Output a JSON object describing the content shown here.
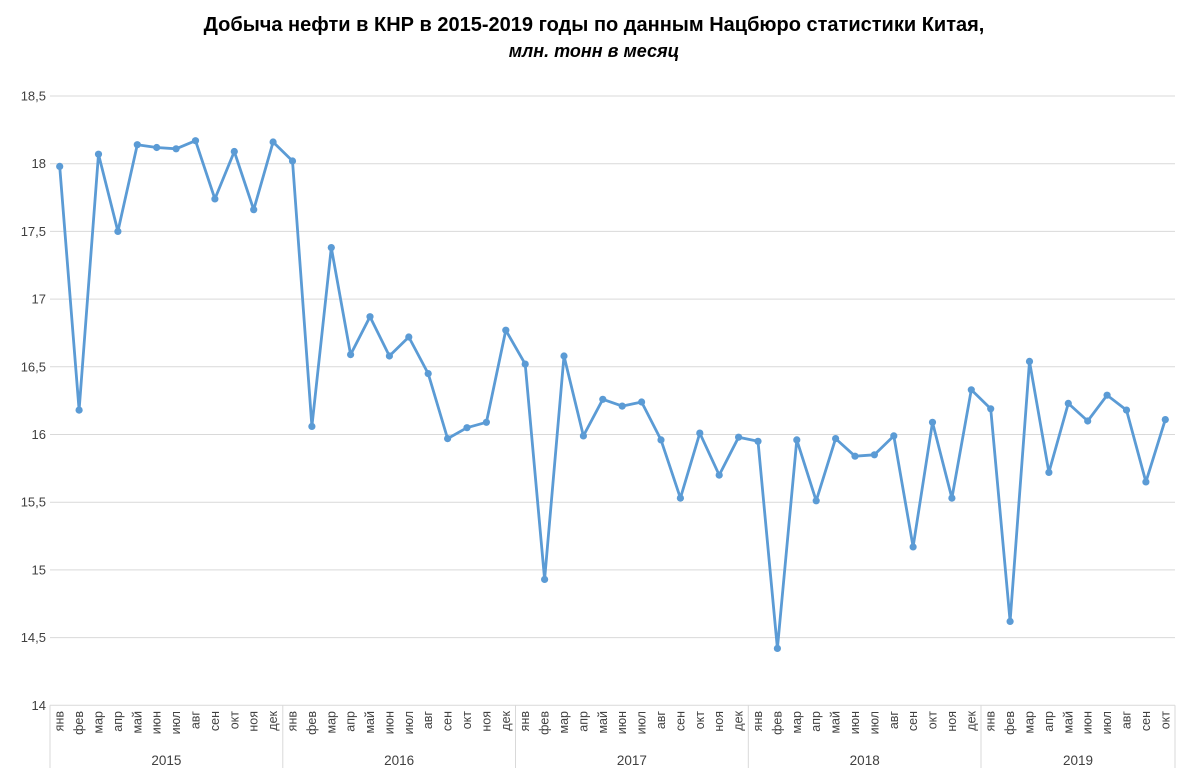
{
  "header": {
    "title": "Добыча нефти в КНР в 2015-2019 годы по данным Нацбюро статистики Китая,",
    "subtitle": "млн. тонн в месяц"
  },
  "chart_data": {
    "type": "line",
    "title": "Добыча нефти в КНР в 2015-2019 годы по данным Нацбюро статистики Китая,",
    "subtitle": "млн. тонн в месяц",
    "xlabel": "",
    "ylabel": "",
    "ylim": [
      14,
      18.5
    ],
    "ytick_step": 0.5,
    "ytick_labels": [
      "18,5",
      "18",
      "17,5",
      "17",
      "16,5",
      "16",
      "15,5",
      "15",
      "14,5",
      "14"
    ],
    "decimal_separator": ",",
    "grid": true,
    "legend_position": "none",
    "colors": {
      "line": "#5B9BD5",
      "marker": "#5B9BD5",
      "gridline": "#d9d9d9",
      "axis_text": "#404040",
      "title_text": "#000000"
    },
    "groups": [
      {
        "year": "2015",
        "months": [
          "янв",
          "фев",
          "мар",
          "апр",
          "май",
          "июн",
          "июл",
          "авг",
          "сен",
          "окт",
          "ноя",
          "дек"
        ],
        "values": [
          17.98,
          16.18,
          18.07,
          17.5,
          18.14,
          18.12,
          18.11,
          18.17,
          17.74,
          18.09,
          17.66,
          18.16
        ]
      },
      {
        "year": "2016",
        "months": [
          "янв",
          "фев",
          "мар",
          "апр",
          "май",
          "июн",
          "июл",
          "авг",
          "сен",
          "окт",
          "ноя",
          "дек"
        ],
        "values": [
          18.02,
          16.06,
          17.38,
          16.59,
          16.87,
          16.58,
          16.72,
          16.45,
          15.97,
          16.05,
          16.09,
          16.77
        ]
      },
      {
        "year": "2017",
        "months": [
          "янв",
          "фев",
          "мар",
          "апр",
          "май",
          "июн",
          "июл",
          "авг",
          "сен",
          "окт",
          "ноя",
          "дек"
        ],
        "values": [
          16.52,
          14.93,
          16.58,
          15.99,
          16.26,
          16.21,
          16.24,
          15.96,
          15.53,
          16.01,
          15.7,
          15.98
        ]
      },
      {
        "year": "2018",
        "months": [
          "янв",
          "фев",
          "мар",
          "апр",
          "май",
          "июн",
          "июл",
          "авг",
          "сен",
          "окт",
          "ноя",
          "дек"
        ],
        "values": [
          15.95,
          14.42,
          15.96,
          15.51,
          15.97,
          15.84,
          15.85,
          15.99,
          15.17,
          16.09,
          15.53,
          16.33
        ]
      },
      {
        "year": "2019",
        "months": [
          "янв",
          "фев",
          "мар",
          "апр",
          "май",
          "июн",
          "июл",
          "авг",
          "сен",
          "окт"
        ],
        "values": [
          16.19,
          14.62,
          16.54,
          15.72,
          16.23,
          16.1,
          16.29,
          16.18,
          15.65,
          16.11
        ]
      }
    ]
  }
}
